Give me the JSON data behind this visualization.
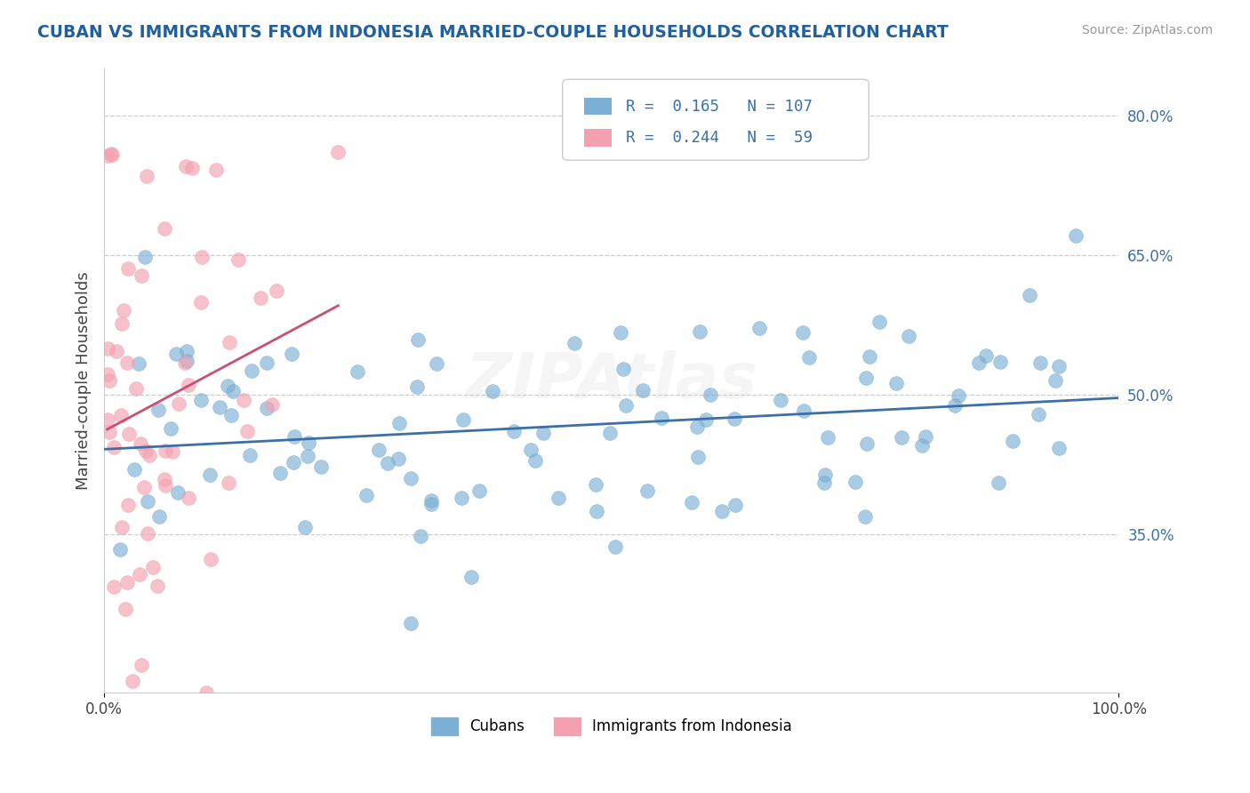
{
  "title": "CUBAN VS IMMIGRANTS FROM INDONESIA MARRIED-COUPLE HOUSEHOLDS CORRELATION CHART",
  "source": "Source: ZipAtlas.com",
  "ylabel": "Married-couple Households",
  "xlim": [
    0,
    100
  ],
  "ylim": [
    18,
    85
  ],
  "yticks": [
    35.0,
    50.0,
    65.0,
    80.0
  ],
  "ytick_labels": [
    "35.0%",
    "50.0%",
    "65.0%",
    "80.0%"
  ],
  "xtick_labels": [
    "0.0%",
    "100.0%"
  ],
  "legend_r1": "R =  0.165",
  "legend_n1": "N = 107",
  "legend_r2": "R =  0.244",
  "legend_n2": "N =  59",
  "blue_color": "#7bafd4",
  "pink_color": "#f4a0b0",
  "blue_line_color": "#3b6fa8",
  "pink_line_color": "#c85070",
  "title_color": "#2060a0",
  "grid_color": "#cccccc",
  "watermark": "ZIPAtlas",
  "legend_bottom": [
    "Cubans",
    "Immigrants from Indonesia"
  ]
}
